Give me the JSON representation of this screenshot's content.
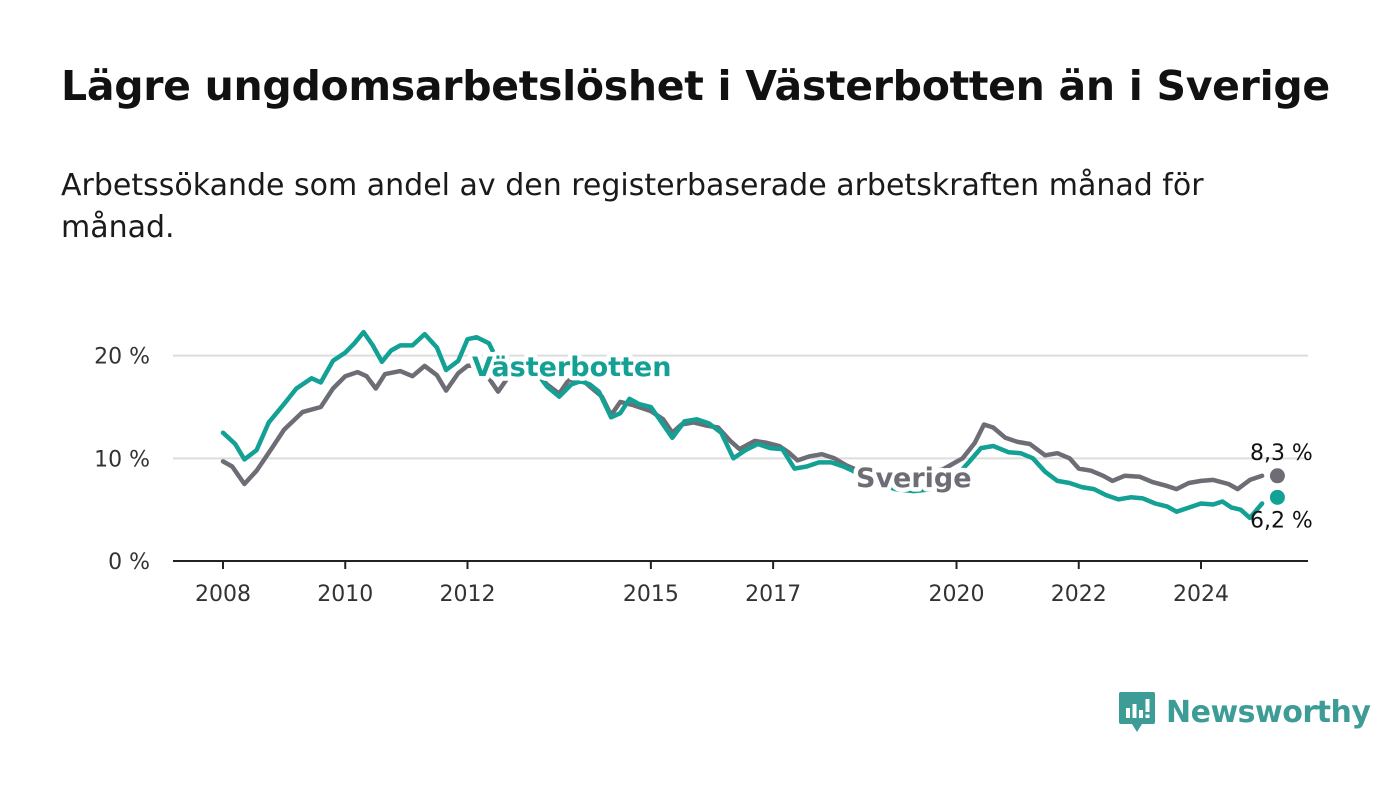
{
  "title": "Lägre ungdomsarbetslöshet i Västerbotten än i Sverige",
  "subtitle": "Arbetssökande som andel av den registerbaserade arbetskraften månad för månad.",
  "brand": {
    "name": "Newsworthy",
    "color": "#3d9c96",
    "icon": "bar-chart-logo-icon"
  },
  "chart_data": {
    "type": "line",
    "y_ticks": [
      "0 %",
      "10 %",
      "20 %"
    ],
    "ylim": [
      0,
      22.5
    ],
    "x_ticks": [
      "2008",
      "2010",
      "2012",
      "2015",
      "2017",
      "2020",
      "2022",
      "2024"
    ],
    "xlim": [
      2007.2,
      2025.8
    ],
    "grid": true,
    "series": [
      {
        "name": "Sverige",
        "color": "#6d6d76",
        "end_label": "8,3 %",
        "points": [
          [
            2008.0,
            9.7
          ],
          [
            2008.15,
            9.2
          ],
          [
            2008.35,
            7.5
          ],
          [
            2008.55,
            8.8
          ],
          [
            2008.8,
            11.0
          ],
          [
            2009.0,
            12.8
          ],
          [
            2009.3,
            14.5
          ],
          [
            2009.6,
            15.0
          ],
          [
            2009.8,
            16.8
          ],
          [
            2010.0,
            18.0
          ],
          [
            2010.2,
            18.4
          ],
          [
            2010.35,
            18.0
          ],
          [
            2010.5,
            16.8
          ],
          [
            2010.65,
            18.2
          ],
          [
            2010.9,
            18.5
          ],
          [
            2011.1,
            18.0
          ],
          [
            2011.3,
            19.0
          ],
          [
            2011.5,
            18.1
          ],
          [
            2011.65,
            16.6
          ],
          [
            2011.85,
            18.3
          ],
          [
            2012.0,
            19.0
          ],
          [
            2012.2,
            19.1
          ],
          [
            2012.5,
            16.5
          ],
          [
            2012.7,
            18.2
          ],
          [
            2012.9,
            19.0
          ],
          [
            2013.1,
            18.5
          ],
          [
            2013.3,
            17.2
          ],
          [
            2013.5,
            16.3
          ],
          [
            2013.65,
            17.6
          ],
          [
            2013.85,
            17.8
          ],
          [
            2014.0,
            17.0
          ],
          [
            2014.2,
            16.0
          ],
          [
            2014.35,
            14.2
          ],
          [
            2014.5,
            15.5
          ],
          [
            2014.7,
            15.2
          ],
          [
            2015.0,
            14.6
          ],
          [
            2015.2,
            13.8
          ],
          [
            2015.35,
            12.5
          ],
          [
            2015.5,
            13.3
          ],
          [
            2015.7,
            13.5
          ],
          [
            2015.9,
            13.2
          ],
          [
            2016.1,
            13.0
          ],
          [
            2016.3,
            11.7
          ],
          [
            2016.45,
            10.9
          ],
          [
            2016.7,
            11.7
          ],
          [
            2016.9,
            11.5
          ],
          [
            2017.1,
            11.2
          ],
          [
            2017.25,
            10.6
          ],
          [
            2017.4,
            9.8
          ],
          [
            2017.6,
            10.2
          ],
          [
            2017.8,
            10.4
          ],
          [
            2018.0,
            10.0
          ],
          [
            2018.2,
            9.3
          ],
          [
            2018.4,
            8.8
          ],
          [
            2018.7,
            8.7
          ],
          [
            2019.0,
            8.6
          ],
          [
            2019.3,
            8.3
          ],
          [
            2019.6,
            8.6
          ],
          [
            2019.8,
            9.0
          ],
          [
            2019.95,
            9.5
          ],
          [
            2020.1,
            10.0
          ],
          [
            2020.3,
            11.5
          ],
          [
            2020.45,
            13.3
          ],
          [
            2020.6,
            13.0
          ],
          [
            2020.8,
            12.0
          ],
          [
            2021.0,
            11.6
          ],
          [
            2021.2,
            11.4
          ],
          [
            2021.45,
            10.3
          ],
          [
            2021.65,
            10.5
          ],
          [
            2021.85,
            10.0
          ],
          [
            2022.0,
            9.0
          ],
          [
            2022.2,
            8.8
          ],
          [
            2022.4,
            8.3
          ],
          [
            2022.55,
            7.8
          ],
          [
            2022.75,
            8.3
          ],
          [
            2023.0,
            8.2
          ],
          [
            2023.2,
            7.7
          ],
          [
            2023.45,
            7.3
          ],
          [
            2023.6,
            7.0
          ],
          [
            2023.8,
            7.6
          ],
          [
            2024.0,
            7.8
          ],
          [
            2024.2,
            7.9
          ],
          [
            2024.45,
            7.5
          ],
          [
            2024.6,
            7.0
          ],
          [
            2024.8,
            7.9
          ],
          [
            2025.0,
            8.3
          ],
          [
            2025.25,
            8.3
          ]
        ]
      },
      {
        "name": "Västerbotten",
        "color": "#13a095",
        "end_label": "6,2 %",
        "points": [
          [
            2008.0,
            12.5
          ],
          [
            2008.2,
            11.4
          ],
          [
            2008.35,
            9.9
          ],
          [
            2008.55,
            10.8
          ],
          [
            2008.75,
            13.5
          ],
          [
            2009.0,
            15.3
          ],
          [
            2009.2,
            16.8
          ],
          [
            2009.45,
            17.8
          ],
          [
            2009.6,
            17.4
          ],
          [
            2009.8,
            19.5
          ],
          [
            2010.0,
            20.3
          ],
          [
            2010.15,
            21.2
          ],
          [
            2010.3,
            22.3
          ],
          [
            2010.45,
            21.0
          ],
          [
            2010.6,
            19.4
          ],
          [
            2010.75,
            20.5
          ],
          [
            2010.9,
            21.0
          ],
          [
            2011.1,
            21.0
          ],
          [
            2011.3,
            22.1
          ],
          [
            2011.5,
            20.8
          ],
          [
            2011.65,
            18.6
          ],
          [
            2011.85,
            19.5
          ],
          [
            2012.0,
            21.6
          ],
          [
            2012.15,
            21.8
          ],
          [
            2012.35,
            21.2
          ],
          [
            2012.55,
            18.8
          ],
          [
            2012.7,
            19.5
          ],
          [
            2012.9,
            19.3
          ],
          [
            2013.1,
            18.6
          ],
          [
            2013.3,
            17.0
          ],
          [
            2013.5,
            16.0
          ],
          [
            2013.7,
            17.2
          ],
          [
            2013.85,
            17.5
          ],
          [
            2014.0,
            17.2
          ],
          [
            2014.15,
            16.5
          ],
          [
            2014.35,
            14.0
          ],
          [
            2014.5,
            14.4
          ],
          [
            2014.65,
            15.8
          ],
          [
            2014.8,
            15.3
          ],
          [
            2015.0,
            15.0
          ],
          [
            2015.2,
            13.3
          ],
          [
            2015.35,
            12.0
          ],
          [
            2015.55,
            13.6
          ],
          [
            2015.75,
            13.8
          ],
          [
            2015.95,
            13.4
          ],
          [
            2016.15,
            12.5
          ],
          [
            2016.35,
            10.0
          ],
          [
            2016.55,
            10.8
          ],
          [
            2016.75,
            11.4
          ],
          [
            2016.95,
            11.0
          ],
          [
            2017.15,
            10.9
          ],
          [
            2017.35,
            9.0
          ],
          [
            2017.55,
            9.2
          ],
          [
            2017.75,
            9.6
          ],
          [
            2017.95,
            9.6
          ],
          [
            2018.15,
            9.2
          ],
          [
            2018.3,
            8.8
          ],
          [
            2018.45,
            8.2
          ],
          [
            2018.7,
            7.6
          ],
          [
            2019.0,
            7.0
          ],
          [
            2019.3,
            6.8
          ],
          [
            2019.6,
            7.0
          ],
          [
            2019.8,
            7.5
          ],
          [
            2020.0,
            8.3
          ],
          [
            2020.2,
            9.6
          ],
          [
            2020.4,
            11.0
          ],
          [
            2020.6,
            11.2
          ],
          [
            2020.85,
            10.6
          ],
          [
            2021.05,
            10.5
          ],
          [
            2021.25,
            10.0
          ],
          [
            2021.45,
            8.7
          ],
          [
            2021.65,
            7.8
          ],
          [
            2021.85,
            7.6
          ],
          [
            2022.05,
            7.2
          ],
          [
            2022.25,
            7.0
          ],
          [
            2022.45,
            6.4
          ],
          [
            2022.65,
            6.0
          ],
          [
            2022.85,
            6.2
          ],
          [
            2023.05,
            6.1
          ],
          [
            2023.25,
            5.6
          ],
          [
            2023.45,
            5.3
          ],
          [
            2023.6,
            4.8
          ],
          [
            2023.8,
            5.2
          ],
          [
            2024.0,
            5.6
          ],
          [
            2024.2,
            5.5
          ],
          [
            2024.35,
            5.8
          ],
          [
            2024.5,
            5.2
          ],
          [
            2024.65,
            5.0
          ],
          [
            2024.8,
            4.2
          ],
          [
            2025.0,
            5.6
          ],
          [
            2025.25,
            6.2
          ]
        ]
      }
    ]
  }
}
